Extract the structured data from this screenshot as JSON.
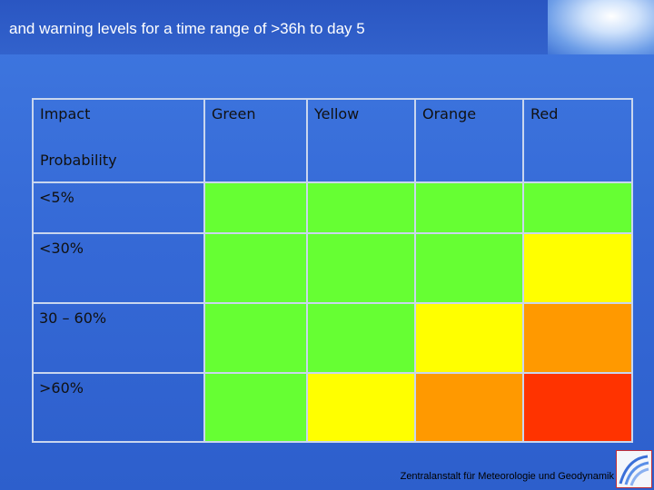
{
  "header": {
    "title": "and warning levels for a time range of >36h to day 5"
  },
  "table": {
    "corner": [
      "Impact",
      "Probability"
    ],
    "columns": [
      "Green",
      "Yellow",
      "Orange",
      "Red"
    ],
    "rows": [
      "<5%",
      "<30%",
      "30 – 60%",
      ">60%"
    ],
    "cells": [
      [
        "#66ff33",
        "#66ff33",
        "#66ff33",
        "#66ff33"
      ],
      [
        "#66ff33",
        "#66ff33",
        "#66ff33",
        "#ffff00"
      ],
      [
        "#66ff33",
        "#66ff33",
        "#ffff00",
        "#ff9900"
      ],
      [
        "#66ff33",
        "#ffff00",
        "#ff9900",
        "#ff3300"
      ]
    ]
  },
  "footer": {
    "text": "Zentralanstalt für Meteorologie und Geodynamik"
  }
}
